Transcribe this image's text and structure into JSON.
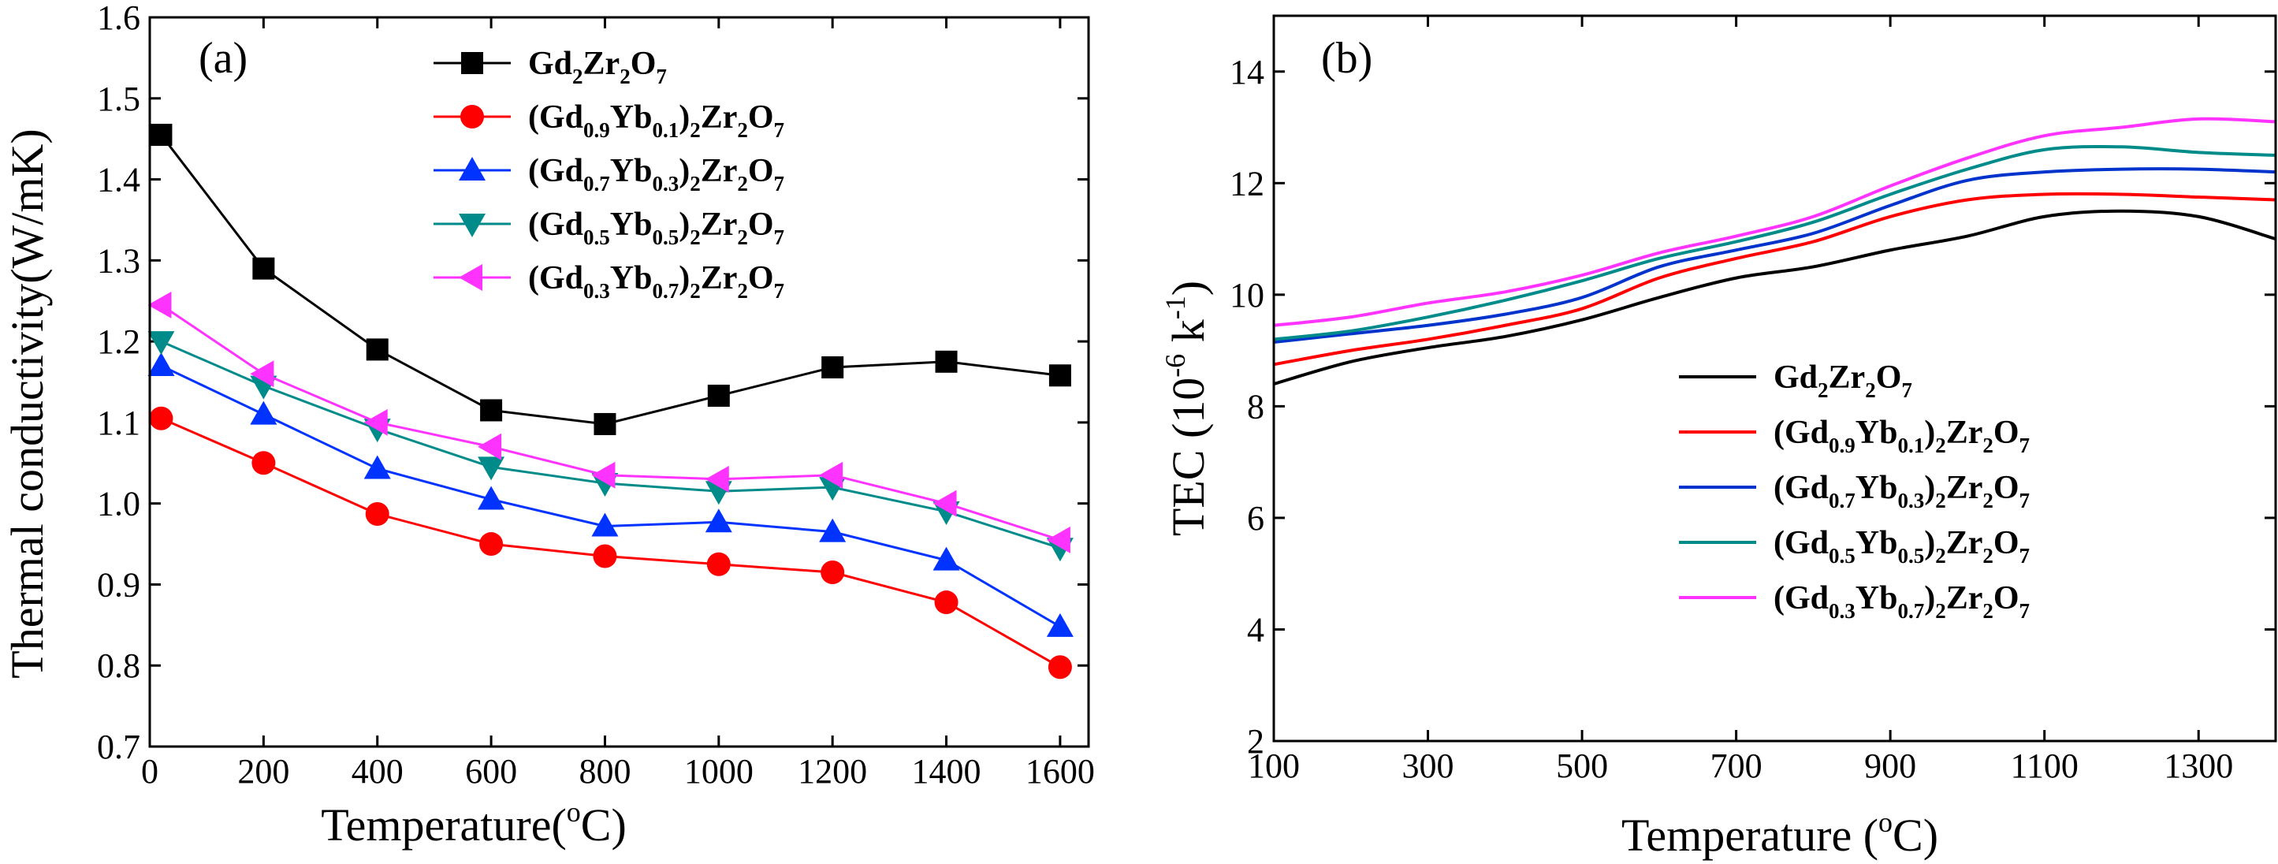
{
  "chart_data": [
    {
      "type": "line",
      "panel_label": "(a)",
      "xlabel": "Temperature(°C)",
      "ylabel": "Thermal conductivity(W/mK)",
      "xlim": [
        0,
        1650
      ],
      "ylim": [
        0.7,
        1.6
      ],
      "xticks": [
        "0",
        "200",
        "400",
        "600",
        "800",
        "1000",
        "1200",
        "1400",
        "1600"
      ],
      "yticks": [
        "0.7",
        "0.8",
        "0.9",
        "1.0",
        "1.1",
        "1.2",
        "1.3",
        "1.4",
        "1.5",
        "1.6"
      ],
      "x": [
        20,
        200,
        400,
        600,
        800,
        1000,
        1200,
        1400,
        1600
      ],
      "grid": false,
      "legend_position": "top-right",
      "series": [
        {
          "name": "Gd2Zr2O7",
          "color": "#000000",
          "marker": "square",
          "values": [
            1.455,
            1.29,
            1.19,
            1.115,
            1.098,
            1.133,
            1.168,
            1.175,
            1.158
          ]
        },
        {
          "name": "(Gd0.9Yb0.1)2Zr2O7",
          "color": "#ff0000",
          "marker": "circle",
          "values": [
            1.105,
            1.05,
            0.987,
            0.95,
            0.935,
            0.925,
            0.915,
            0.878,
            0.798
          ]
        },
        {
          "name": "(Gd0.7Yb0.3)2Zr2O7",
          "color": "#0033ff",
          "marker": "triangle-up",
          "values": [
            1.17,
            1.11,
            1.043,
            1.005,
            0.972,
            0.977,
            0.965,
            0.93,
            0.848
          ]
        },
        {
          "name": "(Gd0.5Yb0.5)2Zr2O7",
          "color": "#008b8b",
          "marker": "triangle-down",
          "values": [
            1.2,
            1.145,
            1.092,
            1.045,
            1.025,
            1.015,
            1.02,
            0.99,
            0.945
          ]
        },
        {
          "name": "(Gd0.3Yb0.7)2Zr2O7",
          "color": "#ff33ff",
          "marker": "triangle-left",
          "values": [
            1.245,
            1.16,
            1.1,
            1.07,
            1.035,
            1.03,
            1.035,
            1.0,
            0.955
          ]
        }
      ]
    },
    {
      "type": "line",
      "panel_label": "(b)",
      "xlabel": "Temperature (°C)",
      "ylabel": "TEC (10⁻⁶ k⁻¹)",
      "xlim": [
        100,
        1400
      ],
      "ylim": [
        2,
        15
      ],
      "xticks": [
        "100",
        "300",
        "500",
        "700",
        "900",
        "1100",
        "1300"
      ],
      "yticks": [
        "2",
        "4",
        "6",
        "8",
        "10",
        "12",
        "14"
      ],
      "x": [
        100,
        200,
        300,
        400,
        500,
        600,
        700,
        800,
        900,
        1000,
        1100,
        1200,
        1300,
        1400
      ],
      "grid": false,
      "legend_position": "bottom-right",
      "series": [
        {
          "name": "Gd2Zr2O7",
          "color": "#000000",
          "values": [
            8.4,
            8.8,
            9.05,
            9.25,
            9.55,
            9.95,
            10.3,
            10.5,
            10.8,
            11.05,
            11.4,
            11.5,
            11.4,
            11.0
          ]
        },
        {
          "name": "(Gd0.9Yb0.1)2Zr2O7",
          "color": "#ff0000",
          "values": [
            8.75,
            9.0,
            9.2,
            9.45,
            9.75,
            10.3,
            10.65,
            10.95,
            11.4,
            11.7,
            11.8,
            11.8,
            11.75,
            11.7
          ]
        },
        {
          "name": "(Gd0.7Yb0.3)2Zr2O7",
          "color": "#0033cc",
          "values": [
            9.15,
            9.3,
            9.45,
            9.65,
            9.95,
            10.5,
            10.8,
            11.1,
            11.6,
            12.05,
            12.2,
            12.25,
            12.25,
            12.2
          ]
        },
        {
          "name": "(Gd0.5Yb0.5)2Zr2O7",
          "color": "#008b8b",
          "values": [
            9.2,
            9.35,
            9.6,
            9.9,
            10.25,
            10.65,
            10.95,
            11.3,
            11.8,
            12.25,
            12.6,
            12.65,
            12.55,
            12.5
          ]
        },
        {
          "name": "(Gd0.3Yb0.7)2Zr2O7",
          "color": "#ff33ff",
          "values": [
            9.45,
            9.6,
            9.85,
            10.05,
            10.35,
            10.75,
            11.05,
            11.4,
            11.95,
            12.45,
            12.85,
            13.0,
            13.15,
            13.1
          ]
        }
      ]
    }
  ]
}
